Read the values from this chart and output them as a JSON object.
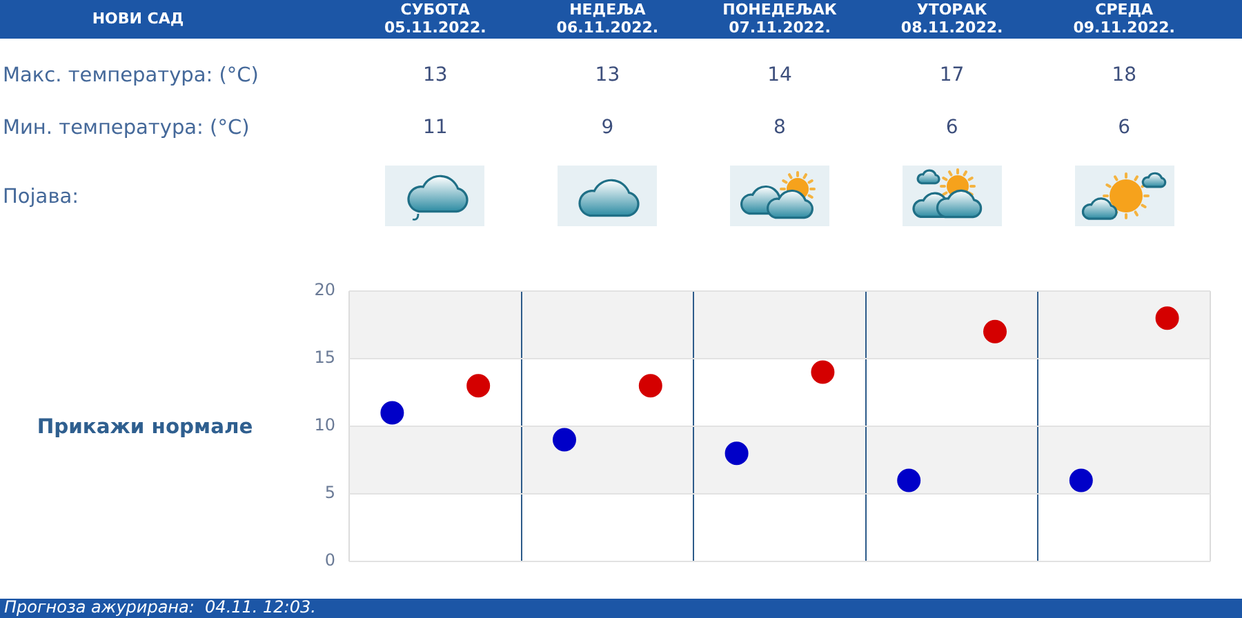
{
  "chart_data": {
    "type": "scatter",
    "title": "НОВИ САД",
    "categories": [
      null,
      null,
      null,
      null,
      null
    ],
    "series": [
      {
        "color": "#d40000",
        "values": [
          13,
          13,
          14,
          17,
          18
        ]
      },
      {
        "color": "#0000c8",
        "values": [
          11,
          9,
          8,
          6,
          6
        ]
      }
    ],
    "ylim": [
      0,
      20
    ],
    "yticks": [
      0,
      5,
      10,
      15,
      20
    ],
    "grid": true,
    "marker": "circle",
    "data_labels": true,
    "tick_labels": "y",
    "bands": [
      {
        "axis": "y",
        "from": 15,
        "to": 20,
        "color": "#f2f2f2"
      },
      {
        "axis": "y",
        "from": 5,
        "to": 10,
        "color": "#f2f2f2"
      }
    ],
    "annotations": [
      "СУБОТА\n05.11.2022.",
      "НЕДЕЉА\n06.11.2022.",
      "ПОНЕДЕЉАК\n07.11.2022.",
      "УТОРАК\n08.11.2022.",
      "СРЕДА\n09.11.2022.",
      "Макс. температура: (°C)",
      "Мин. температура: (°C)",
      "Појава:",
      "Прикажи нормале",
      "Прогноза ажурирана:  04.11. 12:03."
    ]
  }
}
